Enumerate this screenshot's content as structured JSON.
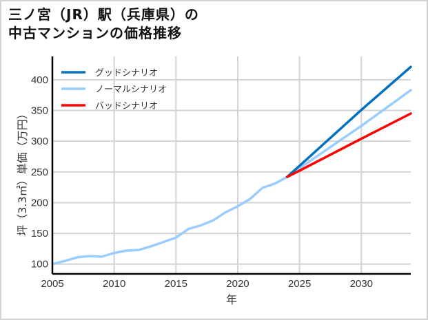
{
  "title_line1": "三ノ宮（JR）駅（兵庫県）の",
  "title_line2": "中古マンションの価格推移",
  "chart_data": {
    "type": "line",
    "title": "三ノ宮（JR）駅（兵庫県）の中古マンションの価格推移",
    "xlabel": "年",
    "ylabel": "坪（3.3㎡）単価（万円）",
    "xlim": [
      2005,
      2034
    ],
    "ylim": [
      84,
      438
    ],
    "xticks": [
      2005,
      2010,
      2015,
      2020,
      2025,
      2030
    ],
    "yticks": [
      100,
      150,
      200,
      250,
      300,
      350,
      400
    ],
    "grid": true,
    "legend_position": "upper left",
    "series": [
      {
        "name": "グッドシナリオ",
        "color": "#0070C0",
        "x": [
          2024,
          2025,
          2030,
          2034
        ],
        "values": [
          242,
          260,
          351,
          421
        ]
      },
      {
        "name": "ノーマルシナリオ",
        "color": "#99CCFF",
        "x": [
          2005,
          2006,
          2007,
          2008,
          2009,
          2010,
          2011,
          2012,
          2013,
          2014,
          2015,
          2016,
          2017,
          2018,
          2019,
          2020,
          2021,
          2022,
          2023,
          2024,
          2025,
          2030,
          2034
        ],
        "values": [
          100,
          105,
          111,
          113,
          112,
          118,
          122,
          123,
          129,
          136,
          143,
          157,
          163,
          171,
          184,
          194,
          206,
          224,
          231,
          242,
          256,
          325,
          383
        ]
      },
      {
        "name": "バッドシナリオ",
        "color": "#FF0000",
        "x": [
          2024,
          2025,
          2030,
          2034
        ],
        "values": [
          242,
          252,
          304,
          345
        ]
      }
    ]
  }
}
